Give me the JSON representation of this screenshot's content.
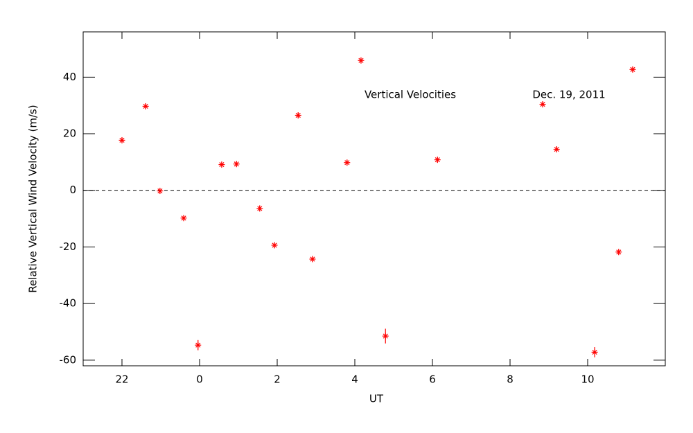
{
  "chart_data": {
    "type": "scatter",
    "xlabel": "UT",
    "ylabel": "Relative Vertical Wind Velocity (m/s)",
    "annotations": [
      "Vertical Velocities",
      "Dec. 19, 2011"
    ],
    "color": "#ff0000",
    "marker": "asterisk",
    "hline": 0,
    "xlim": [
      -3,
      12
    ],
    "ylim": [
      -62,
      56
    ],
    "xticks": [
      {
        "value": -2,
        "label": "22"
      },
      0,
      2,
      4,
      6,
      8,
      10
    ],
    "yticks": [
      -60,
      -40,
      -20,
      0,
      20,
      40
    ],
    "x": [
      -2.0,
      -1.39,
      -1.02,
      -0.41,
      -0.04,
      0.57,
      0.95,
      1.55,
      1.93,
      2.54,
      2.91,
      3.8,
      4.16,
      4.79,
      6.13,
      8.84,
      9.2,
      10.18,
      10.8,
      11.16
    ],
    "values": [
      17.7,
      29.7,
      -0.2,
      -9.8,
      -54.7,
      9.1,
      9.3,
      -6.4,
      -19.4,
      26.5,
      -24.3,
      9.8,
      45.9,
      -51.5,
      10.8,
      30.4,
      14.5,
      -57.2,
      -21.8,
      42.7
    ],
    "errors": [
      1,
      1,
      1,
      1,
      1.8,
      1,
      1,
      1,
      1,
      1,
      1,
      1,
      1,
      2.6,
      1,
      1,
      1,
      1.8,
      1,
      1
    ]
  }
}
